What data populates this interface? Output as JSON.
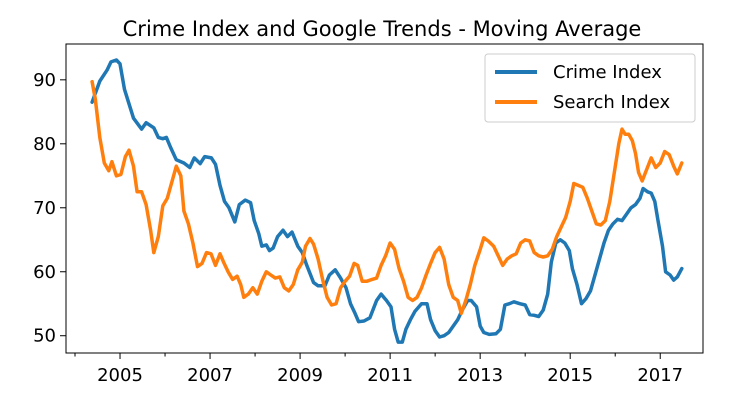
{
  "chart_data": {
    "type": "line",
    "title": "Crime Index and Google Trends - Moving Average",
    "xlabel": "",
    "ylabel": "",
    "xlim": [
      2003.8,
      2017.95
    ],
    "ylim": [
      47.3,
      95.6
    ],
    "xticks": [
      2005,
      2007,
      2009,
      2011,
      2013,
      2015,
      2017
    ],
    "xtick_labels": [
      "2005",
      "2007",
      "2009",
      "2011",
      "2013",
      "2015",
      "2017"
    ],
    "yticks": [
      50,
      60,
      70,
      80,
      90
    ],
    "ytick_labels": [
      "50",
      "60",
      "70",
      "80",
      "90"
    ],
    "grid": false,
    "legend_position": "top-right",
    "series": [
      {
        "name": "Crime Index",
        "color": "#1f77b4",
        "points": [
          [
            2004.38,
            86.5
          ],
          [
            2004.55,
            89.8
          ],
          [
            2004.71,
            91.5
          ],
          [
            2004.8,
            92.8
          ],
          [
            2004.92,
            93.1
          ],
          [
            2005.0,
            92.5
          ],
          [
            2005.1,
            88.5
          ],
          [
            2005.3,
            84.0
          ],
          [
            2005.48,
            82.3
          ],
          [
            2005.58,
            83.3
          ],
          [
            2005.75,
            82.5
          ],
          [
            2005.85,
            81.0
          ],
          [
            2005.95,
            80.8
          ],
          [
            2006.03,
            81.0
          ],
          [
            2006.12,
            79.5
          ],
          [
            2006.25,
            77.5
          ],
          [
            2006.42,
            77.0
          ],
          [
            2006.55,
            76.3
          ],
          [
            2006.65,
            77.8
          ],
          [
            2006.78,
            76.9
          ],
          [
            2006.88,
            78.0
          ],
          [
            2007.03,
            77.8
          ],
          [
            2007.12,
            76.8
          ],
          [
            2007.22,
            73.5
          ],
          [
            2007.32,
            71.0
          ],
          [
            2007.42,
            70.0
          ],
          [
            2007.55,
            67.8
          ],
          [
            2007.65,
            70.5
          ],
          [
            2007.78,
            71.2
          ],
          [
            2007.9,
            70.8
          ],
          [
            2007.98,
            68.0
          ],
          [
            2008.08,
            66.0
          ],
          [
            2008.15,
            64.0
          ],
          [
            2008.25,
            64.2
          ],
          [
            2008.32,
            63.3
          ],
          [
            2008.4,
            63.7
          ],
          [
            2008.5,
            65.5
          ],
          [
            2008.62,
            66.5
          ],
          [
            2008.72,
            65.5
          ],
          [
            2008.82,
            66.2
          ],
          [
            2008.95,
            64.0
          ],
          [
            2009.05,
            63.0
          ],
          [
            2009.15,
            61.0
          ],
          [
            2009.3,
            58.3
          ],
          [
            2009.4,
            57.8
          ],
          [
            2009.55,
            57.8
          ],
          [
            2009.65,
            59.5
          ],
          [
            2009.78,
            60.3
          ],
          [
            2009.9,
            59.0
          ],
          [
            2010.02,
            57.5
          ],
          [
            2010.12,
            55.0
          ],
          [
            2010.22,
            53.5
          ],
          [
            2010.3,
            52.2
          ],
          [
            2010.42,
            52.3
          ],
          [
            2010.55,
            52.8
          ],
          [
            2010.7,
            55.5
          ],
          [
            2010.8,
            56.5
          ],
          [
            2010.92,
            55.5
          ],
          [
            2011.02,
            54.5
          ],
          [
            2011.1,
            51.0
          ],
          [
            2011.18,
            49.0
          ],
          [
            2011.27,
            49.0
          ],
          [
            2011.35,
            51.0
          ],
          [
            2011.45,
            52.5
          ],
          [
            2011.55,
            53.8
          ],
          [
            2011.7,
            55.0
          ],
          [
            2011.82,
            55.0
          ],
          [
            2011.9,
            52.5
          ],
          [
            2012.0,
            50.8
          ],
          [
            2012.1,
            49.8
          ],
          [
            2012.2,
            50.0
          ],
          [
            2012.3,
            50.5
          ],
          [
            2012.4,
            51.5
          ],
          [
            2012.5,
            52.5
          ],
          [
            2012.6,
            54.0
          ],
          [
            2012.72,
            55.5
          ],
          [
            2012.8,
            55.5
          ],
          [
            2012.92,
            54.5
          ],
          [
            2013.0,
            51.5
          ],
          [
            2013.08,
            50.5
          ],
          [
            2013.2,
            50.2
          ],
          [
            2013.35,
            50.3
          ],
          [
            2013.45,
            51.0
          ],
          [
            2013.55,
            54.8
          ],
          [
            2013.65,
            55.0
          ],
          [
            2013.75,
            55.3
          ],
          [
            2013.88,
            55.0
          ],
          [
            2014.0,
            54.8
          ],
          [
            2014.1,
            53.3
          ],
          [
            2014.2,
            53.2
          ],
          [
            2014.3,
            53.0
          ],
          [
            2014.4,
            54.0
          ],
          [
            2014.5,
            56.5
          ],
          [
            2014.58,
            61.5
          ],
          [
            2014.68,
            64.5
          ],
          [
            2014.78,
            65.0
          ],
          [
            2014.88,
            64.5
          ],
          [
            2014.98,
            63.3
          ],
          [
            2015.05,
            60.5
          ],
          [
            2015.15,
            58.0
          ],
          [
            2015.25,
            55.0
          ],
          [
            2015.35,
            55.8
          ],
          [
            2015.45,
            57.0
          ],
          [
            2015.55,
            59.5
          ],
          [
            2015.65,
            62.0
          ],
          [
            2015.75,
            64.5
          ],
          [
            2015.85,
            66.5
          ],
          [
            2015.95,
            67.5
          ],
          [
            2016.05,
            68.2
          ],
          [
            2016.15,
            68.0
          ],
          [
            2016.25,
            69.0
          ],
          [
            2016.35,
            70.0
          ],
          [
            2016.45,
            70.5
          ],
          [
            2016.55,
            71.5
          ],
          [
            2016.62,
            73.0
          ],
          [
            2016.72,
            72.5
          ],
          [
            2016.8,
            72.3
          ],
          [
            2016.88,
            71.0
          ],
          [
            2016.95,
            68.0
          ],
          [
            2017.05,
            64.0
          ],
          [
            2017.12,
            60.0
          ],
          [
            2017.22,
            59.5
          ],
          [
            2017.3,
            58.7
          ],
          [
            2017.38,
            59.2
          ],
          [
            2017.48,
            60.5
          ]
        ]
      },
      {
        "name": "Search Index",
        "color": "#ff7f0e",
        "points": [
          [
            2004.38,
            89.7
          ],
          [
            2004.45,
            87.0
          ],
          [
            2004.55,
            81.0
          ],
          [
            2004.65,
            77.0
          ],
          [
            2004.75,
            75.8
          ],
          [
            2004.82,
            77.2
          ],
          [
            2004.92,
            75.0
          ],
          [
            2005.02,
            75.2
          ],
          [
            2005.12,
            78.0
          ],
          [
            2005.2,
            79.0
          ],
          [
            2005.3,
            76.5
          ],
          [
            2005.38,
            72.5
          ],
          [
            2005.48,
            72.5
          ],
          [
            2005.58,
            70.5
          ],
          [
            2005.68,
            66.5
          ],
          [
            2005.75,
            63.0
          ],
          [
            2005.85,
            65.5
          ],
          [
            2005.95,
            70.3
          ],
          [
            2006.05,
            71.5
          ],
          [
            2006.15,
            74.0
          ],
          [
            2006.25,
            76.5
          ],
          [
            2006.35,
            75.0
          ],
          [
            2006.42,
            69.5
          ],
          [
            2006.52,
            67.5
          ],
          [
            2006.62,
            64.5
          ],
          [
            2006.72,
            60.8
          ],
          [
            2006.82,
            61.3
          ],
          [
            2006.92,
            63.0
          ],
          [
            2007.02,
            62.8
          ],
          [
            2007.12,
            61.0
          ],
          [
            2007.22,
            62.8
          ],
          [
            2007.3,
            61.5
          ],
          [
            2007.4,
            60.0
          ],
          [
            2007.5,
            58.8
          ],
          [
            2007.6,
            59.3
          ],
          [
            2007.68,
            58.0
          ],
          [
            2007.75,
            56.0
          ],
          [
            2007.85,
            56.5
          ],
          [
            2007.95,
            57.5
          ],
          [
            2008.05,
            56.5
          ],
          [
            2008.15,
            58.5
          ],
          [
            2008.25,
            60.0
          ],
          [
            2008.35,
            59.5
          ],
          [
            2008.45,
            59.0
          ],
          [
            2008.55,
            59.2
          ],
          [
            2008.65,
            57.5
          ],
          [
            2008.75,
            57.0
          ],
          [
            2008.85,
            58.0
          ],
          [
            2008.95,
            60.3
          ],
          [
            2009.05,
            61.5
          ],
          [
            2009.12,
            64.0
          ],
          [
            2009.22,
            65.2
          ],
          [
            2009.3,
            64.3
          ],
          [
            2009.4,
            62.0
          ],
          [
            2009.5,
            58.8
          ],
          [
            2009.6,
            56.0
          ],
          [
            2009.7,
            54.8
          ],
          [
            2009.8,
            55.0
          ],
          [
            2009.9,
            57.5
          ],
          [
            2010.0,
            58.5
          ],
          [
            2010.1,
            59.3
          ],
          [
            2010.2,
            61.3
          ],
          [
            2010.28,
            61.0
          ],
          [
            2010.38,
            58.5
          ],
          [
            2010.48,
            58.5
          ],
          [
            2010.6,
            58.8
          ],
          [
            2010.7,
            59.0
          ],
          [
            2010.8,
            61.0
          ],
          [
            2010.9,
            62.5
          ],
          [
            2011.0,
            64.5
          ],
          [
            2011.1,
            63.5
          ],
          [
            2011.2,
            60.5
          ],
          [
            2011.3,
            58.5
          ],
          [
            2011.4,
            56.0
          ],
          [
            2011.5,
            55.5
          ],
          [
            2011.6,
            56.0
          ],
          [
            2011.7,
            57.5
          ],
          [
            2011.8,
            59.5
          ],
          [
            2011.9,
            61.3
          ],
          [
            2012.0,
            63.0
          ],
          [
            2012.1,
            63.8
          ],
          [
            2012.2,
            62.0
          ],
          [
            2012.3,
            58.0
          ],
          [
            2012.4,
            56.0
          ],
          [
            2012.5,
            55.5
          ],
          [
            2012.58,
            53.5
          ],
          [
            2012.68,
            55.5
          ],
          [
            2012.78,
            58.0
          ],
          [
            2012.88,
            61.0
          ],
          [
            2013.0,
            63.5
          ],
          [
            2013.08,
            65.3
          ],
          [
            2013.18,
            64.8
          ],
          [
            2013.3,
            64.0
          ],
          [
            2013.4,
            62.5
          ],
          [
            2013.5,
            61.0
          ],
          [
            2013.6,
            62.0
          ],
          [
            2013.7,
            62.5
          ],
          [
            2013.8,
            62.8
          ],
          [
            2013.9,
            64.5
          ],
          [
            2014.0,
            65.0
          ],
          [
            2014.1,
            64.8
          ],
          [
            2014.2,
            63.0
          ],
          [
            2014.3,
            62.5
          ],
          [
            2014.4,
            62.3
          ],
          [
            2014.5,
            62.5
          ],
          [
            2014.6,
            63.5
          ],
          [
            2014.7,
            65.5
          ],
          [
            2014.8,
            67.0
          ],
          [
            2014.9,
            68.5
          ],
          [
            2015.0,
            71.0
          ],
          [
            2015.08,
            73.8
          ],
          [
            2015.18,
            73.5
          ],
          [
            2015.28,
            73.2
          ],
          [
            2015.38,
            71.5
          ],
          [
            2015.48,
            69.5
          ],
          [
            2015.58,
            67.5
          ],
          [
            2015.68,
            67.3
          ],
          [
            2015.78,
            68.0
          ],
          [
            2015.88,
            71.0
          ],
          [
            2015.98,
            75.5
          ],
          [
            2016.08,
            80.0
          ],
          [
            2016.15,
            82.3
          ],
          [
            2016.22,
            81.5
          ],
          [
            2016.3,
            81.5
          ],
          [
            2016.38,
            80.5
          ],
          [
            2016.45,
            78.5
          ],
          [
            2016.52,
            75.5
          ],
          [
            2016.6,
            74.2
          ],
          [
            2016.7,
            76.0
          ],
          [
            2016.8,
            77.8
          ],
          [
            2016.9,
            76.3
          ],
          [
            2017.0,
            77.0
          ],
          [
            2017.1,
            78.8
          ],
          [
            2017.2,
            78.3
          ],
          [
            2017.3,
            76.5
          ],
          [
            2017.38,
            75.3
          ],
          [
            2017.48,
            77.0
          ]
        ]
      }
    ]
  }
}
